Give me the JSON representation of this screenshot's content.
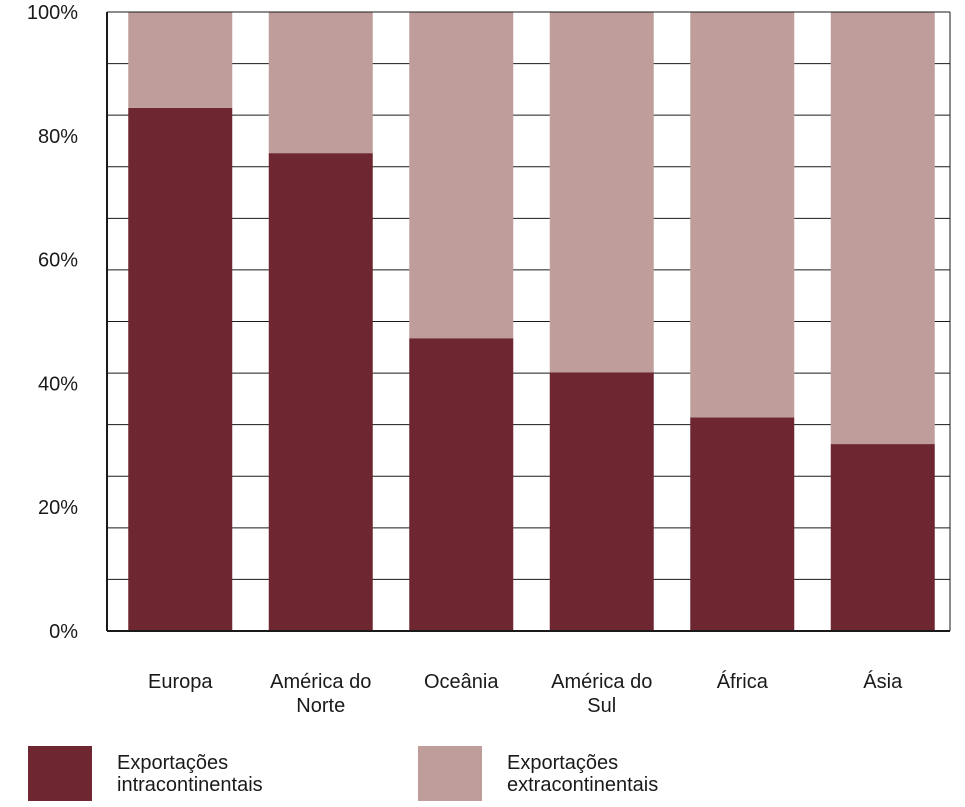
{
  "chart_data": {
    "type": "bar",
    "stacked": true,
    "categories": [
      "Europa",
      "América do Norte",
      "Oceânia",
      "América do Sul",
      "África",
      "Ásia"
    ],
    "series": [
      {
        "name": "Exportações intracontinentais",
        "values": [
          84.5,
          77.2,
          47.3,
          41.8,
          34.5,
          30.2
        ],
        "color": "#6e2730"
      },
      {
        "name": "Exportações extracontinentais",
        "values": [
          15.5,
          22.8,
          52.7,
          58.2,
          65.5,
          69.8
        ],
        "color": "#bf9d9a"
      }
    ],
    "yticks": [
      "0%",
      "20%",
      "40%",
      "60%",
      "80%",
      "100%"
    ],
    "ylim": [
      0,
      100
    ],
    "grid_step": 8.333,
    "grid": true,
    "title": "",
    "xlabel": "",
    "ylabel": ""
  },
  "legend": {
    "items": [
      {
        "label": "Exportações intracontinentais",
        "color": "#6e2730"
      },
      {
        "label": "Exportações extracontinentais",
        "color": "#bf9d9a"
      }
    ]
  }
}
